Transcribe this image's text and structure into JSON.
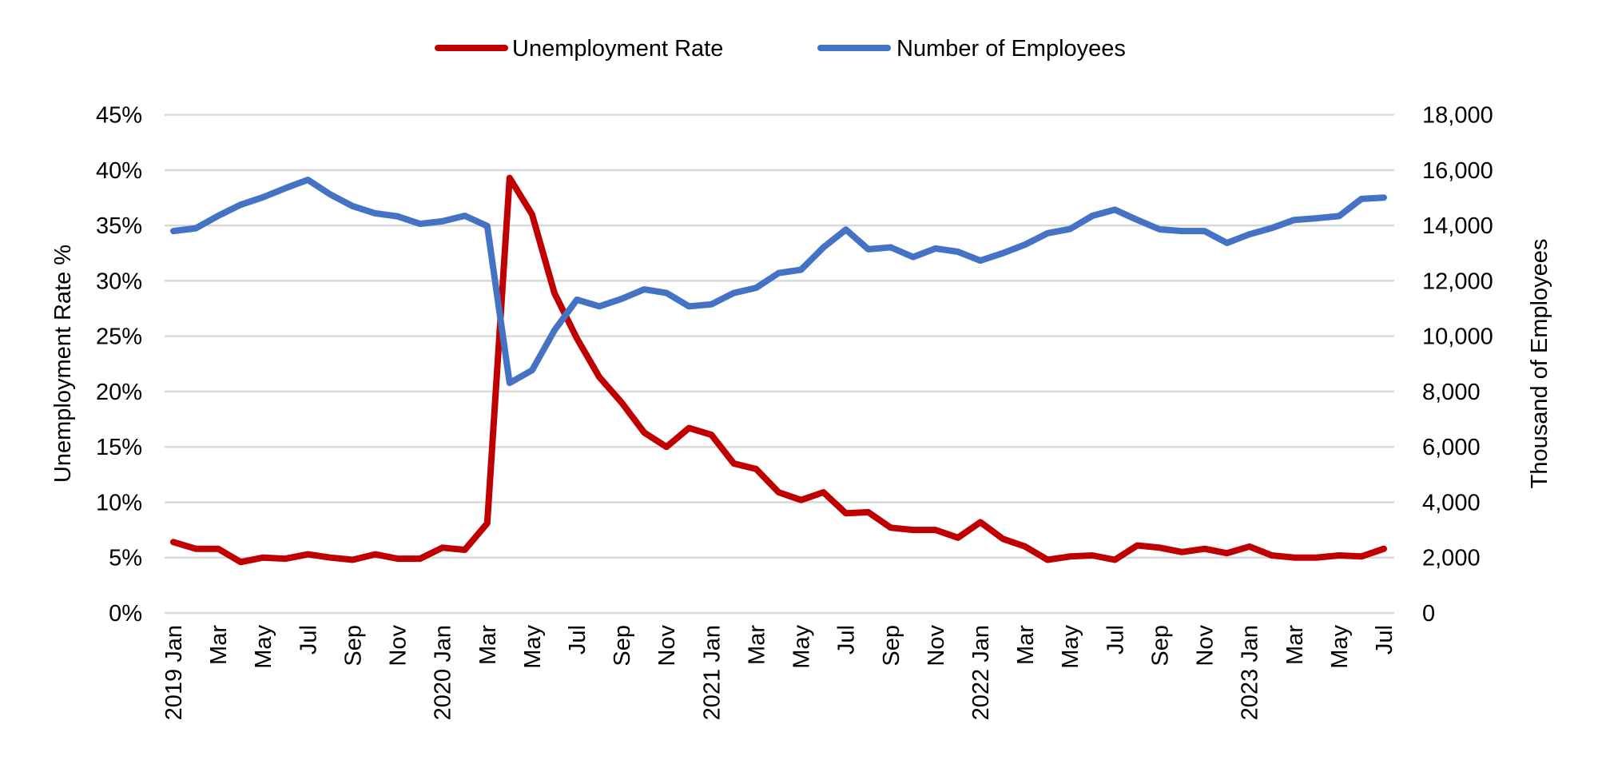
{
  "chart_data": {
    "type": "line",
    "title": "",
    "legend": {
      "placement": "top",
      "entries": [
        "Unemployment Rate",
        "Number of Employees"
      ]
    },
    "ylabel": "Unemployment Rate %",
    "y2label": "Thousand of Employees",
    "ylim": [
      0,
      45
    ],
    "y2lim": [
      0,
      18000
    ],
    "yticks": [
      "0%",
      "5%",
      "10%",
      "15%",
      "20%",
      "25%",
      "30%",
      "35%",
      "40%",
      "45%"
    ],
    "y2ticks": [
      "0",
      "2,000",
      "4,000",
      "6,000",
      "8,000",
      "10,000",
      "12,000",
      "14,000",
      "16,000",
      "18,000"
    ],
    "grid": true,
    "x": [
      "2019 Jan",
      "Feb",
      "Mar",
      "Apr",
      "May",
      "Jun",
      "Jul",
      "Aug",
      "Sep",
      "Oct",
      "Nov",
      "Dec",
      "2020 Jan",
      "Feb",
      "Mar",
      "Apr",
      "May",
      "Jun",
      "Jul",
      "Aug",
      "Sep",
      "Oct",
      "Nov",
      "Dec",
      "2021 Jan",
      "Feb",
      "Mar",
      "Apr",
      "May",
      "Jun",
      "Jul",
      "Aug",
      "Sep",
      "Oct",
      "Nov",
      "Dec",
      "2022 Jan",
      "Feb",
      "Mar",
      "Apr",
      "May",
      "Jun",
      "Jul",
      "Aug",
      "Sep",
      "Oct",
      "Nov",
      "Dec",
      "2023 Jan",
      "Feb",
      "Mar",
      "Apr",
      "May",
      "Jun",
      "Jul"
    ],
    "xtick_labels": [
      "2019 Jan",
      "Mar",
      "May",
      "Jul",
      "Sep",
      "Nov",
      "2020 Jan",
      "Mar",
      "May",
      "Jul",
      "Sep",
      "Nov",
      "2021 Jan",
      "Mar",
      "May",
      "Jul",
      "Sep",
      "Nov",
      "2022 Jan",
      "Mar",
      "May",
      "Jul",
      "Sep",
      "Nov",
      "2023 Jan",
      "Mar",
      "May",
      "Jul"
    ],
    "series": [
      {
        "name": "Unemployment Rate",
        "axis": "left",
        "color": "#C00000",
        "values": [
          6.4,
          5.8,
          5.8,
          4.6,
          5.0,
          4.9,
          5.3,
          5.0,
          4.8,
          5.3,
          4.9,
          4.9,
          5.9,
          5.7,
          8.1,
          39.3,
          36.0,
          28.9,
          24.8,
          21.3,
          19.0,
          16.3,
          15.0,
          16.7,
          16.1,
          13.5,
          13.0,
          10.9,
          10.2,
          10.9,
          9.0,
          9.1,
          7.7,
          7.5,
          7.5,
          6.8,
          8.2,
          6.7,
          6.0,
          4.8,
          5.1,
          5.2,
          4.8,
          6.1,
          5.9,
          5.5,
          5.8,
          5.4,
          6.0,
          5.2,
          5.0,
          5.0,
          5.2,
          5.1,
          5.8
        ]
      },
      {
        "name": "Number of Employees",
        "axis": "right",
        "color": "#4472C4",
        "values": [
          13800,
          13900,
          14350,
          14750,
          15020,
          15350,
          15650,
          15120,
          14700,
          14440,
          14330,
          14060,
          14150,
          14350,
          13980,
          8310,
          8770,
          10210,
          11320,
          11080,
          11350,
          11690,
          11560,
          11080,
          11150,
          11560,
          11750,
          12280,
          12400,
          13210,
          13850,
          13140,
          13210,
          12860,
          13170,
          13050,
          12730,
          13000,
          13310,
          13720,
          13870,
          14350,
          14570,
          14200,
          13860,
          13800,
          13800,
          13370,
          13680,
          13910,
          14200,
          14260,
          14340,
          14960,
          15010
        ]
      }
    ]
  }
}
